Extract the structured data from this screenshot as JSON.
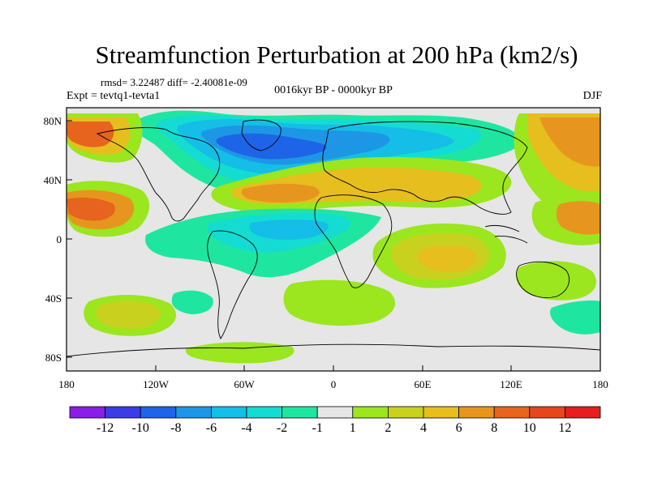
{
  "title": "Streamfunction Perturbation at 200 hPa (km2/s)",
  "stats": "rmsd= 3.22487 diff= -2.40081e-09",
  "expt": "Expt = tevtq1-tevta1",
  "period": "0016kyr BP - 0000kyr BP",
  "season": "DJF",
  "lat_labels": [
    "80N",
    "40N",
    "0",
    "40S",
    "80S"
  ],
  "lon_labels": [
    "180",
    "120W",
    "60W",
    "0",
    "60E",
    "120E",
    "180"
  ],
  "colorbar": {
    "labels": [
      "-12",
      "-10",
      "-8",
      "-6",
      "-4",
      "-2",
      "-1",
      "1",
      "2",
      "4",
      "6",
      "8",
      "10",
      "12"
    ],
    "colors": [
      "#8a1ee6",
      "#3c3ce6",
      "#1e64e6",
      "#1e96e6",
      "#14bee6",
      "#14dcd2",
      "#1ee6a0",
      "#e6e6e6",
      "#9be61e",
      "#c8d21e",
      "#e6be1e",
      "#e6961e",
      "#e6641e",
      "#e6461e",
      "#e61e1e"
    ]
  }
}
